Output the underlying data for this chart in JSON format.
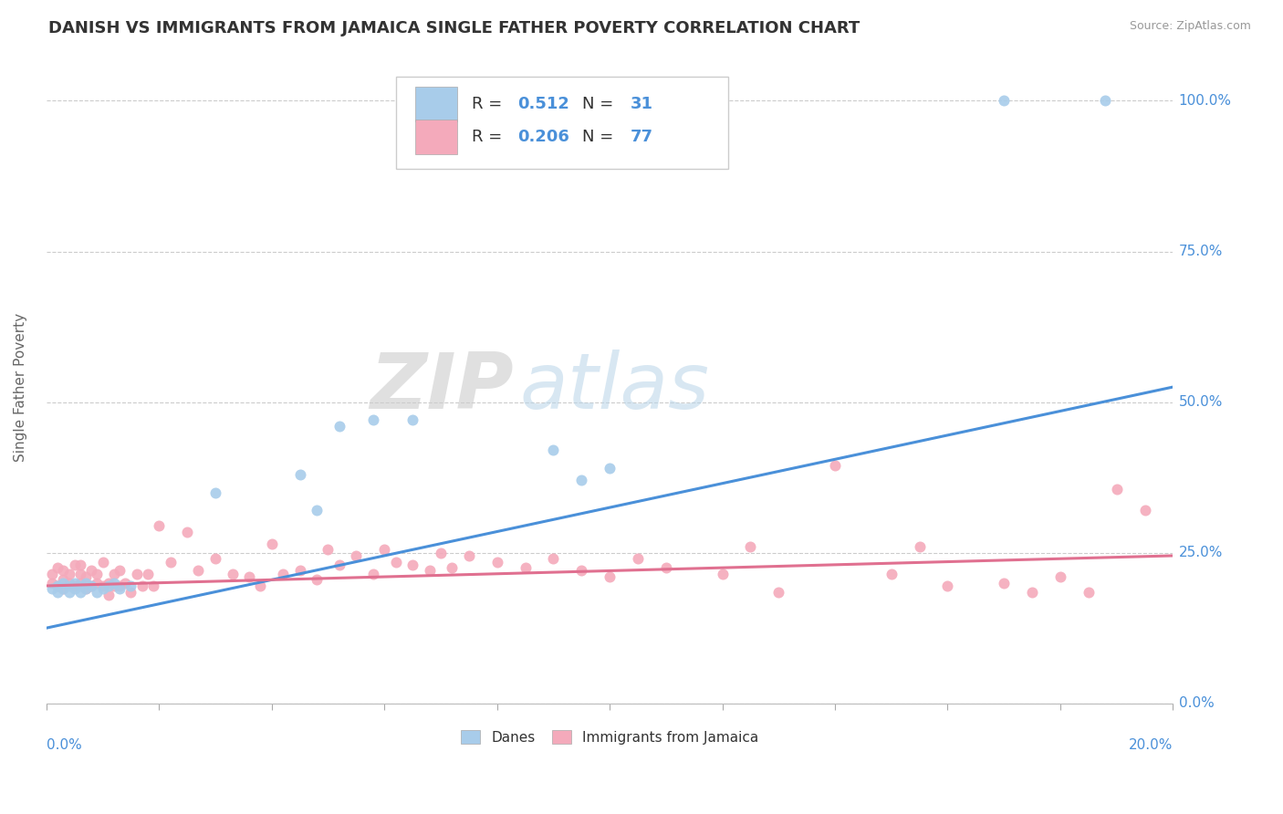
{
  "title": "DANISH VS IMMIGRANTS FROM JAMAICA SINGLE FATHER POVERTY CORRELATION CHART",
  "source": "Source: ZipAtlas.com",
  "ylabel": "Single Father Poverty",
  "ytick_labels": [
    "0.0%",
    "25.0%",
    "50.0%",
    "75.0%",
    "100.0%"
  ],
  "ytick_values": [
    0.0,
    0.25,
    0.5,
    0.75,
    1.0
  ],
  "xlim": [
    0.0,
    0.2
  ],
  "ylim": [
    0.0,
    1.05
  ],
  "legend_R_blue": "0.512",
  "legend_N_blue": "31",
  "legend_R_pink": "0.206",
  "legend_N_pink": "77",
  "blue_scatter_color": "#A8CCEA",
  "pink_scatter_color": "#F4AABB",
  "line_blue": "#4A90D9",
  "line_pink": "#E07090",
  "watermark_zip": "ZIP",
  "watermark_atlas": "atlas",
  "danes_x": [
    0.001,
    0.002,
    0.002,
    0.003,
    0.003,
    0.004,
    0.004,
    0.005,
    0.005,
    0.006,
    0.006,
    0.007,
    0.007,
    0.008,
    0.009,
    0.01,
    0.011,
    0.012,
    0.013,
    0.015,
    0.03,
    0.045,
    0.048,
    0.052,
    0.058,
    0.065,
    0.09,
    0.095,
    0.1,
    0.17,
    0.188
  ],
  "danes_y": [
    0.19,
    0.195,
    0.185,
    0.2,
    0.19,
    0.195,
    0.185,
    0.2,
    0.19,
    0.195,
    0.185,
    0.19,
    0.2,
    0.195,
    0.185,
    0.19,
    0.195,
    0.2,
    0.19,
    0.195,
    0.35,
    0.38,
    0.32,
    0.46,
    0.47,
    0.47,
    0.42,
    0.37,
    0.39,
    1.0,
    1.0
  ],
  "jamaica_x": [
    0.001,
    0.001,
    0.002,
    0.002,
    0.003,
    0.003,
    0.003,
    0.004,
    0.004,
    0.005,
    0.005,
    0.006,
    0.006,
    0.006,
    0.007,
    0.007,
    0.008,
    0.008,
    0.009,
    0.009,
    0.01,
    0.01,
    0.011,
    0.011,
    0.012,
    0.012,
    0.013,
    0.013,
    0.014,
    0.015,
    0.016,
    0.017,
    0.018,
    0.019,
    0.02,
    0.022,
    0.025,
    0.027,
    0.03,
    0.033,
    0.036,
    0.038,
    0.04,
    0.042,
    0.045,
    0.048,
    0.05,
    0.052,
    0.055,
    0.058,
    0.06,
    0.062,
    0.065,
    0.068,
    0.07,
    0.072,
    0.075,
    0.08,
    0.085,
    0.09,
    0.095,
    0.1,
    0.105,
    0.11,
    0.12,
    0.125,
    0.13,
    0.14,
    0.15,
    0.155,
    0.16,
    0.17,
    0.175,
    0.18,
    0.185,
    0.19,
    0.195
  ],
  "jamaica_y": [
    0.2,
    0.215,
    0.195,
    0.225,
    0.19,
    0.205,
    0.22,
    0.2,
    0.215,
    0.195,
    0.23,
    0.2,
    0.215,
    0.23,
    0.19,
    0.21,
    0.195,
    0.22,
    0.2,
    0.215,
    0.195,
    0.235,
    0.2,
    0.18,
    0.195,
    0.215,
    0.195,
    0.22,
    0.2,
    0.185,
    0.215,
    0.195,
    0.215,
    0.195,
    0.295,
    0.235,
    0.285,
    0.22,
    0.24,
    0.215,
    0.21,
    0.195,
    0.265,
    0.215,
    0.22,
    0.205,
    0.255,
    0.23,
    0.245,
    0.215,
    0.255,
    0.235,
    0.23,
    0.22,
    0.25,
    0.225,
    0.245,
    0.235,
    0.225,
    0.24,
    0.22,
    0.21,
    0.24,
    0.225,
    0.215,
    0.26,
    0.185,
    0.395,
    0.215,
    0.26,
    0.195,
    0.2,
    0.185,
    0.21,
    0.185,
    0.355,
    0.32
  ],
  "blue_line_x0": 0.0,
  "blue_line_y0": 0.125,
  "blue_line_x1": 0.2,
  "blue_line_y1": 0.525,
  "pink_line_x0": 0.0,
  "pink_line_y0": 0.195,
  "pink_line_x1": 0.2,
  "pink_line_y1": 0.245
}
